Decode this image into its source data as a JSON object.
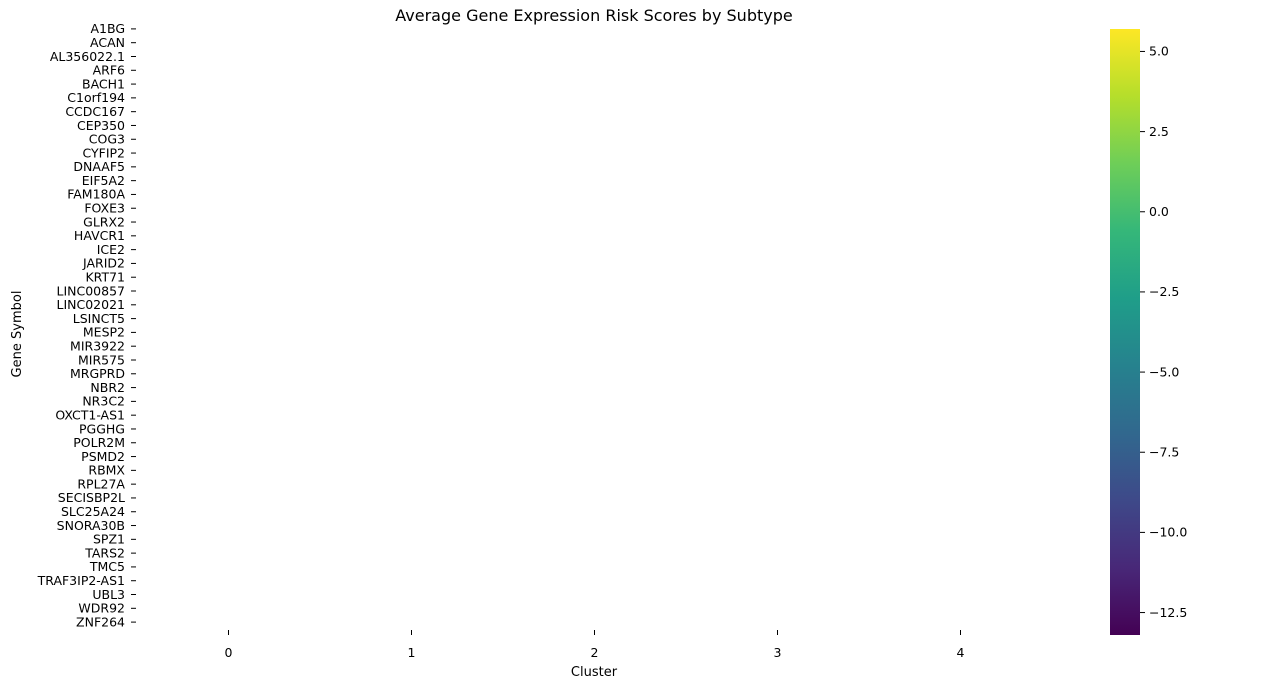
{
  "chart_data": {
    "type": "heatmap",
    "title": "Average Gene Expression Risk Scores by Subtype",
    "xlabel": "Cluster",
    "ylabel": "Gene Symbol",
    "x_categories": [
      "0",
      "1",
      "2",
      "3",
      "4"
    ],
    "y_categories": [
      "A1BG",
      "ACAN",
      "AL356022.1",
      "ARF6",
      "BACH1",
      "C1orf194",
      "CCDC167",
      "CEP350",
      "COG3",
      "CYFIP2",
      "DNAAF5",
      "EIF5A2",
      "FAM180A",
      "FOXE3",
      "GLRX2",
      "HAVCR1",
      "ICE2",
      "JARID2",
      "KRT71",
      "LINC00857",
      "LINC02021",
      "LSINCT5",
      "MESP2",
      "MIR3922",
      "MIR575",
      "MRGPRD",
      "NBR2",
      "NR3C2",
      "OXCT1-AS1",
      "PGGHG",
      "POLR2M",
      "PSMD2",
      "RBMX",
      "RPL27A",
      "SECISBP2L",
      "SLC25A24",
      "SNORA30B",
      "SPZ1",
      "TARS2",
      "TMC5",
      "TRAF3IP2-AS1",
      "UBL3",
      "WDR92",
      "ZNF264"
    ],
    "values": [],
    "colormap": "viridis",
    "colorbar": {
      "vmin": -13.2,
      "vmax": 5.7,
      "ticks": [
        5.0,
        2.5,
        0.0,
        -2.5,
        -5.0,
        -7.5,
        -10.0,
        -12.5
      ],
      "tick_labels": [
        "5.0",
        "2.5",
        "0.0",
        "−2.5",
        "−5.0",
        "−7.5",
        "−10.0",
        "−12.5"
      ],
      "colors": [
        "#440154",
        "#482878",
        "#3e4989",
        "#31688e",
        "#26828e",
        "#1f9e89",
        "#35b779",
        "#6ece58",
        "#b5de2b",
        "#fde725"
      ]
    },
    "grid": false
  }
}
